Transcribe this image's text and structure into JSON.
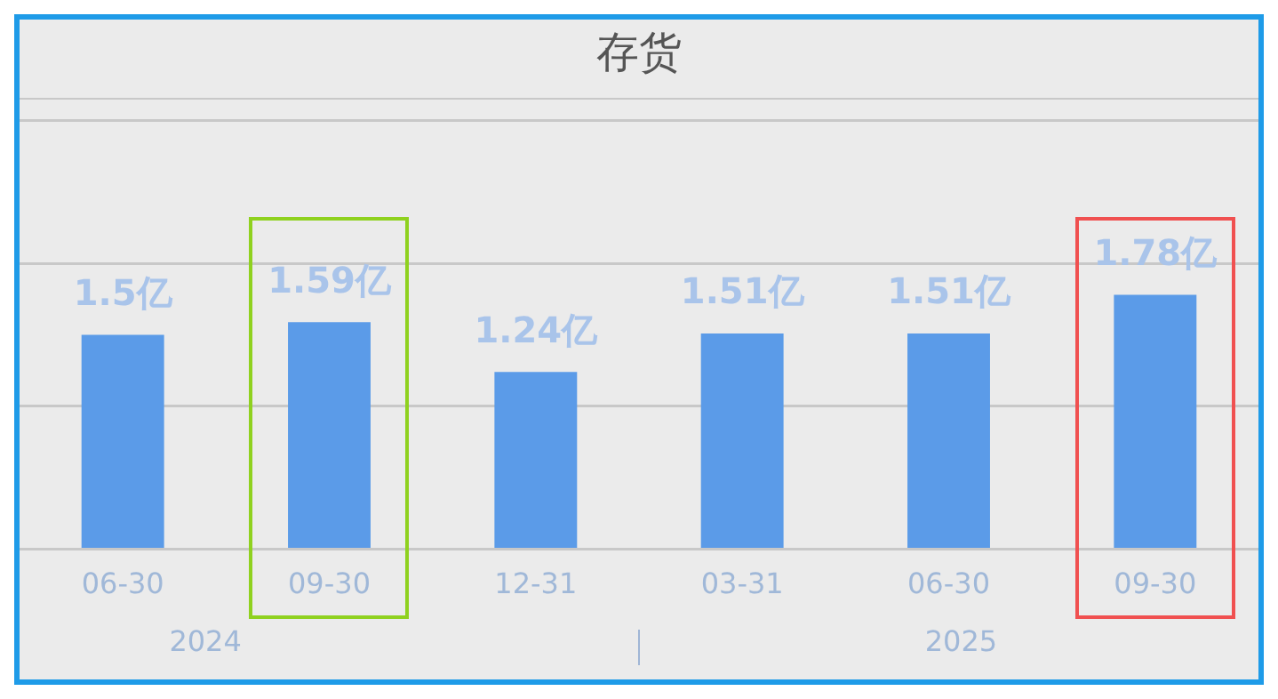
{
  "chart_data": {
    "type": "bar",
    "title": "存货",
    "categories": [
      "06-30",
      "09-30",
      "12-31",
      "03-31",
      "06-30",
      "09-30"
    ],
    "values": [
      1.5,
      1.59,
      1.24,
      1.51,
      1.51,
      1.78
    ],
    "value_labels": [
      "1.5亿",
      "1.59亿",
      "1.24亿",
      "1.51亿",
      "1.51亿",
      "1.78亿"
    ],
    "color": "#5b9be8",
    "ylim": [
      0,
      3
    ],
    "yticks": [
      {
        "value": 0,
        "label": null
      },
      {
        "value": 1,
        "label": null
      },
      {
        "value": 2,
        "label": null
      },
      {
        "value": 3,
        "label": null
      }
    ],
    "grid": "y",
    "tick_labels": "x",
    "annotations": [
      "2024",
      "2025"
    ]
  }
}
